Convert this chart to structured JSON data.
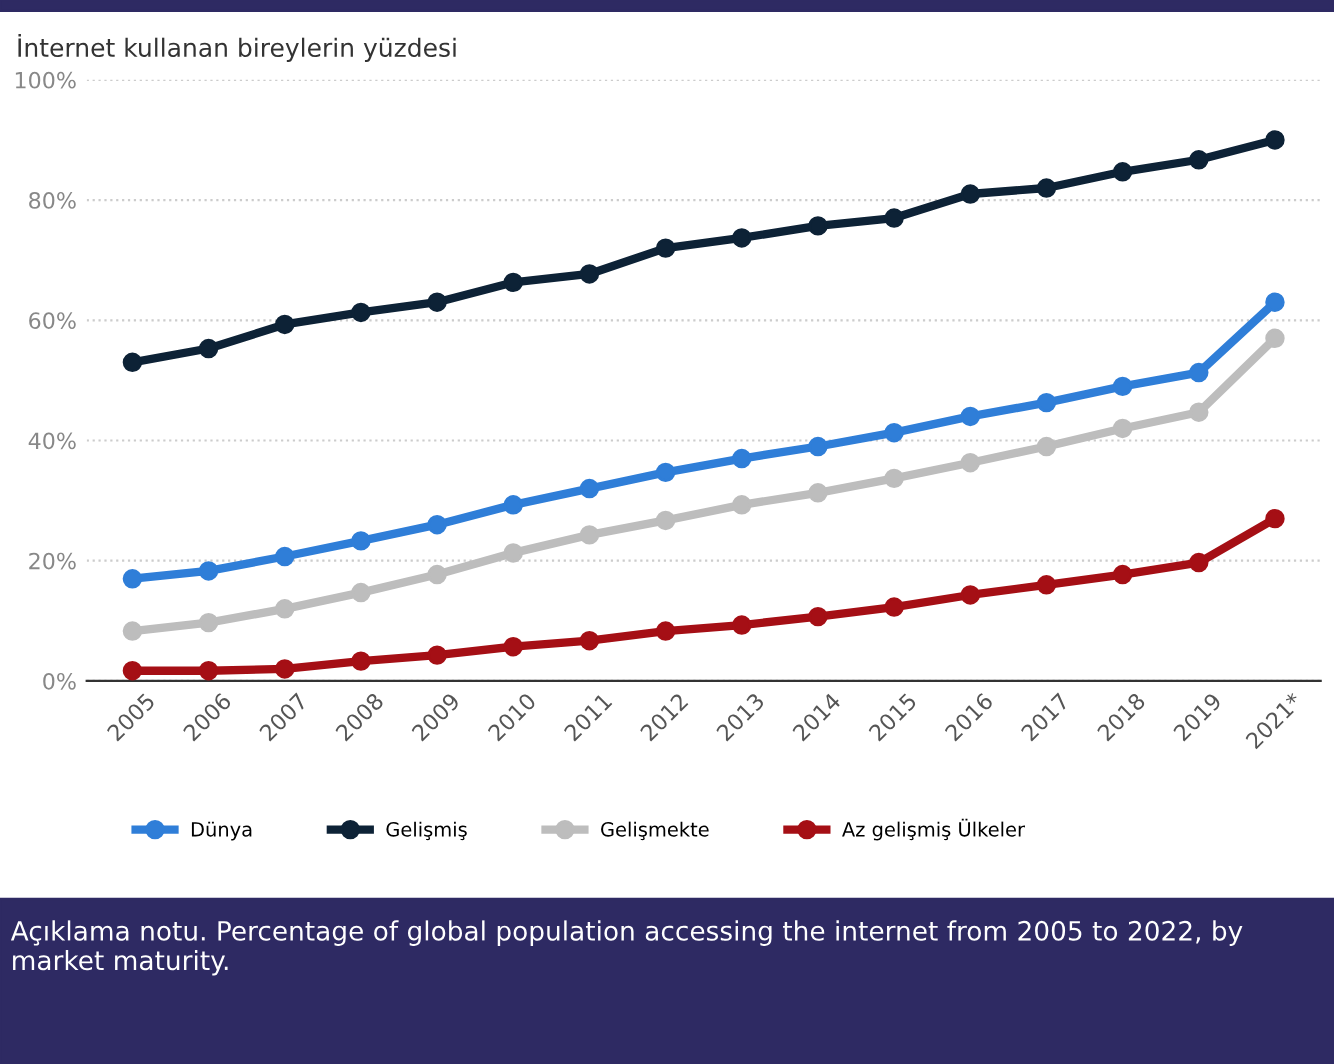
{
  "chart_data": {
    "type": "line",
    "title": "İnternet kullanan bireylerin yüzdesi",
    "categories": [
      "2005",
      "2006",
      "2007",
      "2008",
      "2009",
      "2010",
      "2011",
      "2012",
      "2013",
      "2014",
      "2015",
      "2016",
      "2017",
      "2018",
      "2019",
      "2021*"
    ],
    "series": [
      {
        "name": "Dünya",
        "color": "#2f7ed8",
        "values": [
          17,
          18.3,
          20.7,
          23.3,
          26,
          29.3,
          32,
          34.7,
          37,
          39,
          41.3,
          44,
          46.3,
          49,
          51.3,
          63
        ]
      },
      {
        "name": "Gelişmiş",
        "color": "#0d2236",
        "values": [
          53,
          55.3,
          59.3,
          61.3,
          63,
          66.3,
          67.7,
          72,
          73.7,
          75.7,
          77,
          81,
          82,
          84.7,
          86.7,
          90
        ]
      },
      {
        "name": "Gelişmekte",
        "color": "#bdbdbd",
        "values": [
          8.3,
          9.7,
          12,
          14.7,
          17.7,
          21.3,
          24.3,
          26.7,
          29.3,
          31.3,
          33.7,
          36.3,
          39,
          42,
          44.7,
          57
        ]
      },
      {
        "name": "Az gelişmiş Ülkeler",
        "color": "#a50f15",
        "values": [
          1.7,
          1.7,
          2,
          3.3,
          4.3,
          5.7,
          6.7,
          8.3,
          9.3,
          10.7,
          12.3,
          14.3,
          16,
          17.7,
          19.7,
          27
        ]
      }
    ],
    "ylim": [
      0,
      100
    ],
    "yticks": [
      {
        "value": 0,
        "label": "0%"
      },
      {
        "value": 20,
        "label": "20%"
      },
      {
        "value": 40,
        "label": "40%"
      },
      {
        "value": 60,
        "label": "60%"
      },
      {
        "value": 80,
        "label": "80%"
      },
      {
        "value": 100,
        "label": "100%"
      }
    ],
    "grid": "y",
    "legend": "bottom",
    "marker": "circle",
    "line_style": "solid",
    "annotations": [
      "Açıklama notu. Percentage of global population accessing the internet from 2005 to 2022, by market maturity."
    ]
  }
}
